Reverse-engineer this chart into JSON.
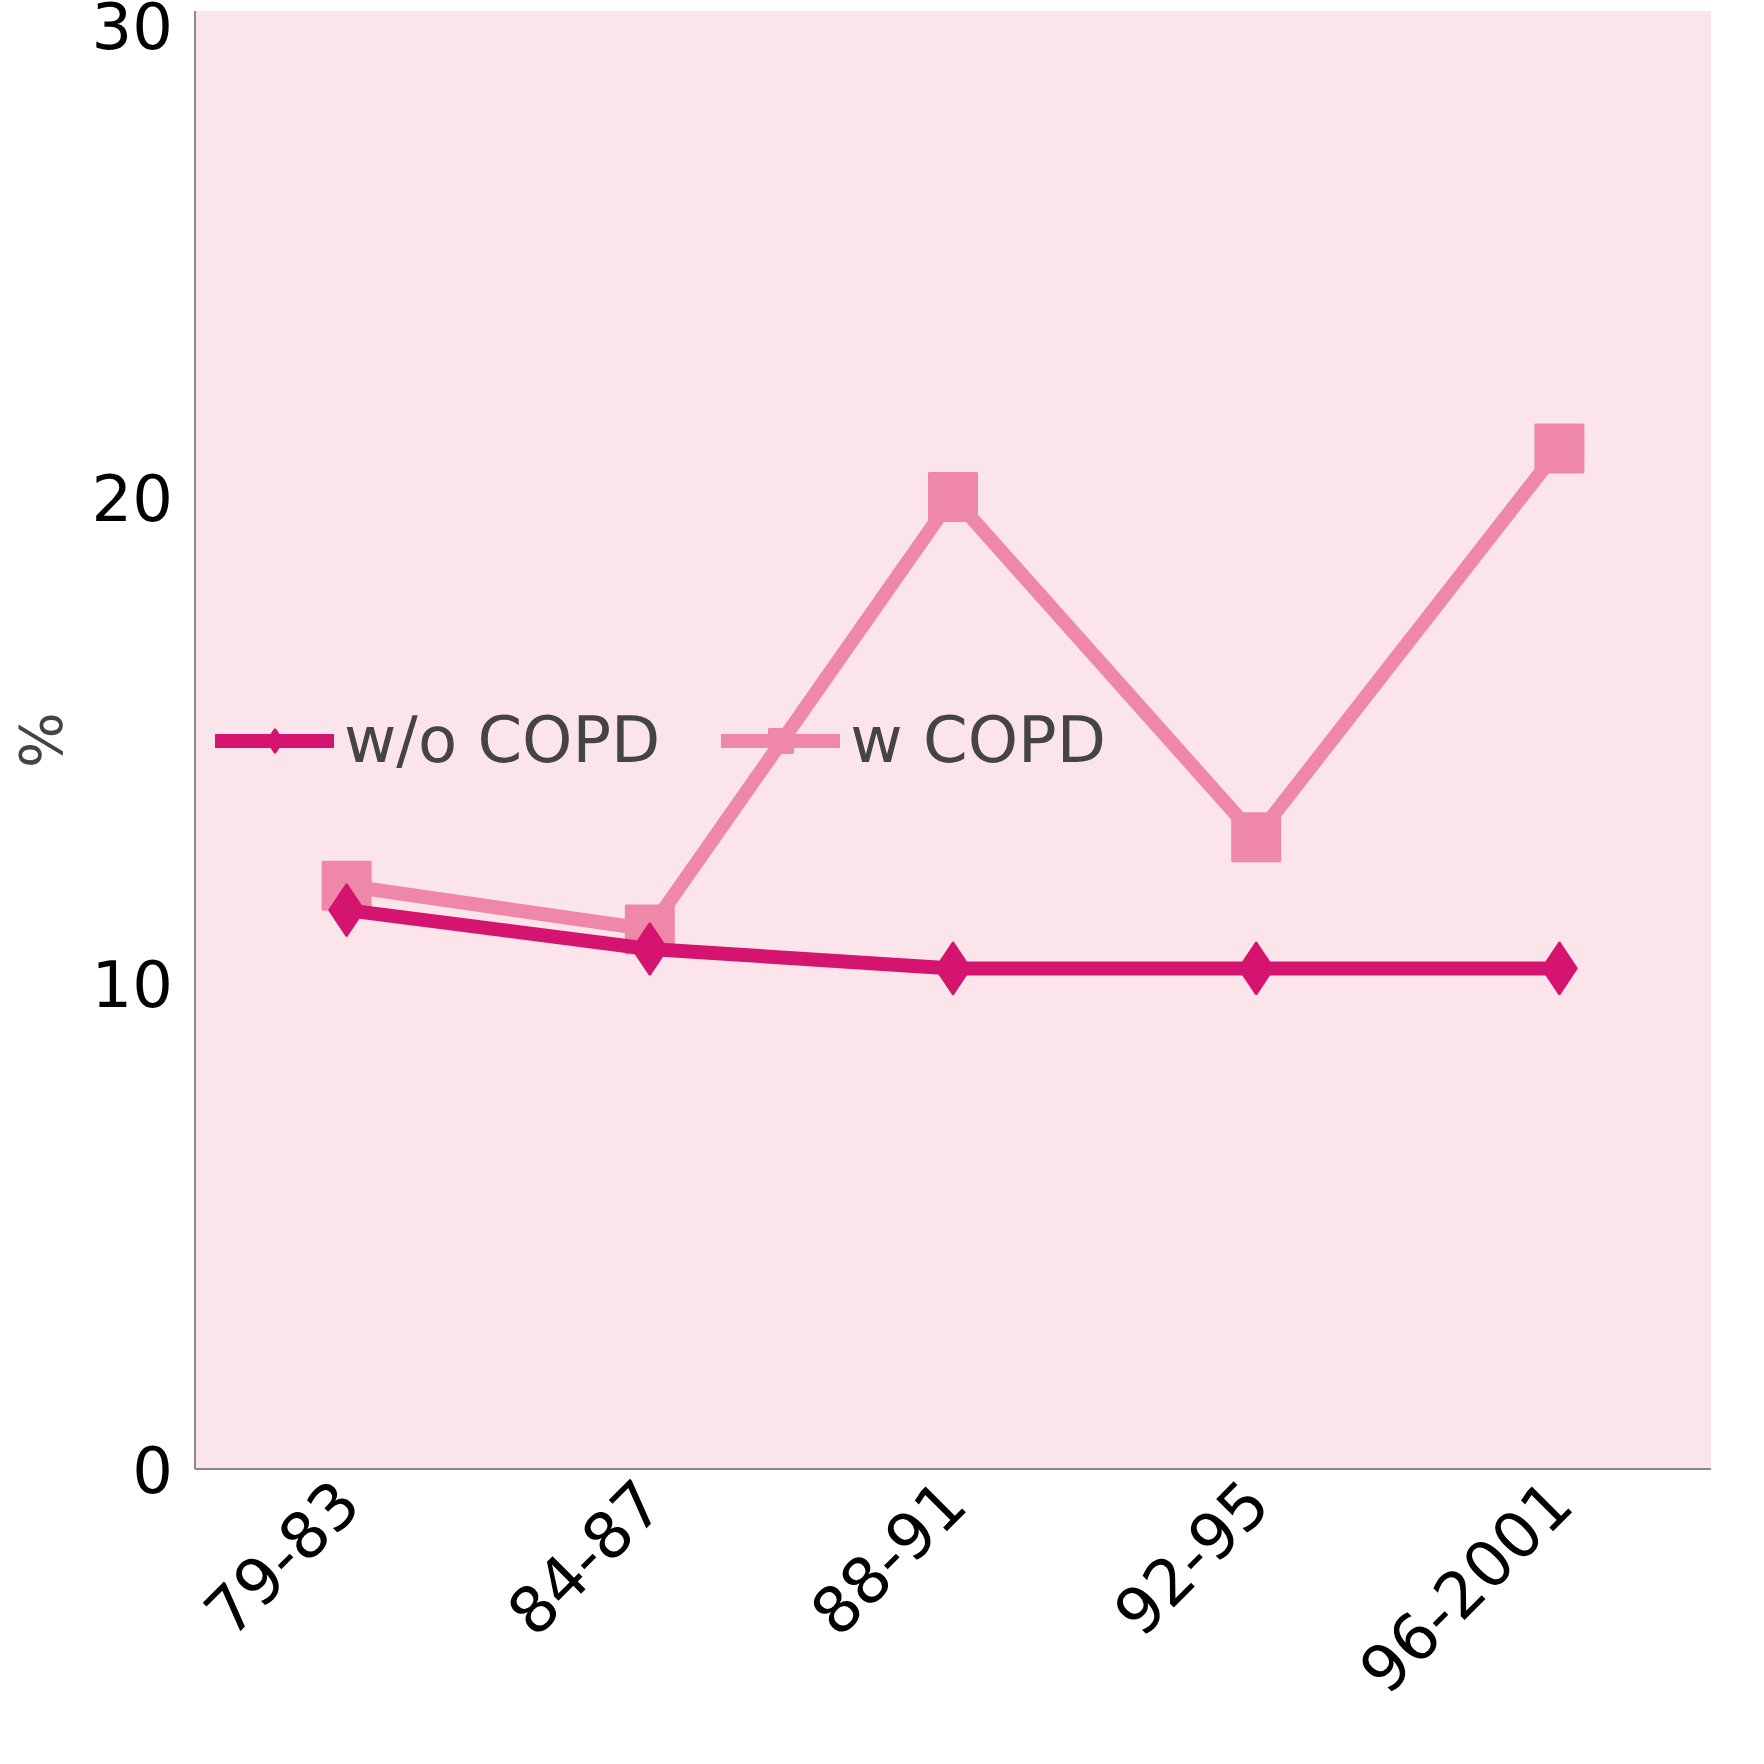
{
  "chart_data": {
    "type": "line",
    "ylabel": "%",
    "categories": [
      "79-83",
      "84-87",
      "88-91",
      "92-95",
      "96-2001"
    ],
    "series": [
      {
        "name": "w/o COPD",
        "color": "#d4146e",
        "marker": "diamond",
        "values": [
          11.5,
          10.7,
          10.3,
          10.3,
          10.3
        ]
      },
      {
        "name": "w COPD",
        "color": "#ef88a8",
        "marker": "square",
        "values": [
          12.0,
          11.1,
          20.0,
          13.0,
          21.0
        ]
      }
    ],
    "ylim": [
      0,
      30
    ],
    "yticks": [
      0,
      10,
      20,
      30
    ],
    "grid": false,
    "legend": "left",
    "line_style": "solid"
  }
}
